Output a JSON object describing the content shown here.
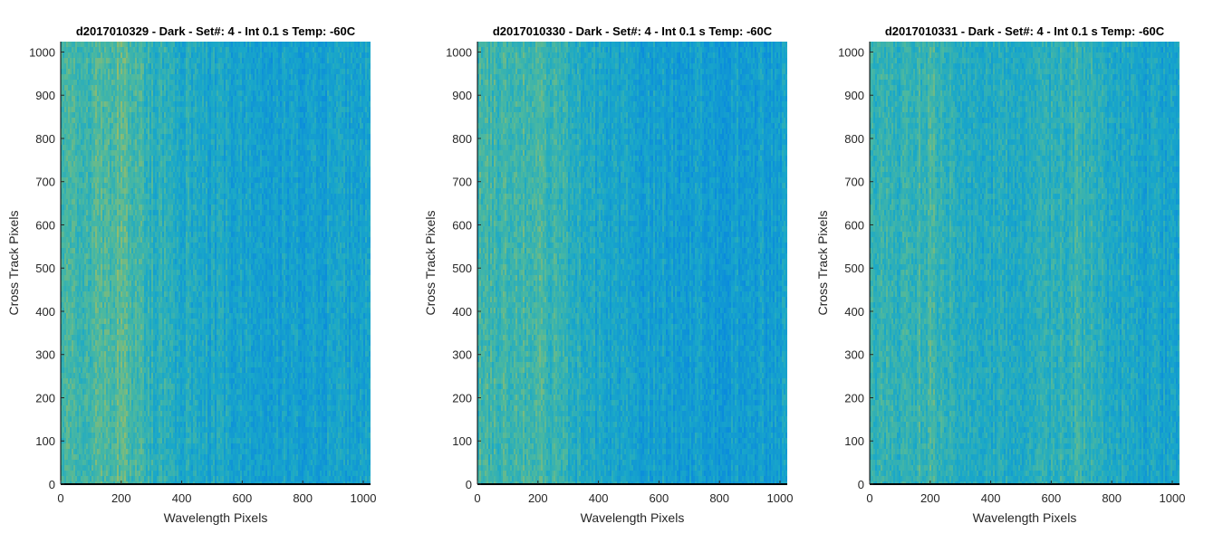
{
  "chart_data": [
    {
      "type": "heatmap",
      "title": "d2017010329 - Dark - Set#: 4 - Int 0.1 s Temp: -60C",
      "xlabel": "Wavelength Pixels",
      "ylabel": "Cross Track Pixels",
      "xlim": [
        0,
        1024
      ],
      "ylim": [
        0,
        1024
      ],
      "xticks": [
        0,
        200,
        400,
        600,
        800,
        1000
      ],
      "yticks": [
        0,
        100,
        200,
        300,
        400,
        500,
        600,
        700,
        800,
        900,
        1000
      ],
      "grid": false,
      "colormap": "parula",
      "warm_band_center_x": 200,
      "pattern_profile_x": [
        0,
        100,
        200,
        300,
        400,
        500,
        600,
        700,
        800,
        900,
        1000
      ],
      "pattern_profile_level": [
        0.55,
        0.6,
        0.68,
        0.48,
        0.38,
        0.33,
        0.28,
        0.26,
        0.26,
        0.27,
        0.3
      ]
    },
    {
      "type": "heatmap",
      "title": "d2017010330 - Dark - Set#: 4 - Int 0.1 s Temp: -60C",
      "xlabel": "Wavelength Pixels",
      "ylabel": "Cross Track Pixels",
      "xlim": [
        0,
        1024
      ],
      "ylim": [
        0,
        1024
      ],
      "xticks": [
        0,
        200,
        400,
        600,
        800,
        1000
      ],
      "yticks": [
        0,
        100,
        200,
        300,
        400,
        500,
        600,
        700,
        800,
        900,
        1000
      ],
      "grid": false,
      "colormap": "parula",
      "warm_band_center_x": 240,
      "pattern_profile_x": [
        0,
        100,
        200,
        300,
        400,
        500,
        600,
        700,
        800,
        900,
        1000
      ],
      "pattern_profile_level": [
        0.58,
        0.55,
        0.6,
        0.48,
        0.34,
        0.28,
        0.24,
        0.22,
        0.21,
        0.23,
        0.26
      ]
    },
    {
      "type": "heatmap",
      "title": "d2017010331 - Dark - Set#: 4 - Int 0.1 s Temp: -60C",
      "xlabel": "Wavelength Pixels",
      "ylabel": "Cross Track Pixels",
      "xlim": [
        0,
        1024
      ],
      "ylim": [
        0,
        1024
      ],
      "xticks": [
        0,
        200,
        400,
        600,
        800,
        1000
      ],
      "yticks": [
        0,
        100,
        200,
        300,
        400,
        500,
        600,
        700,
        800,
        900,
        1000
      ],
      "grid": false,
      "colormap": "parula",
      "warm_band_center_x": 180,
      "pattern_profile_x": [
        0,
        100,
        200,
        300,
        400,
        500,
        600,
        700,
        800,
        900,
        1000
      ],
      "pattern_profile_level": [
        0.52,
        0.5,
        0.58,
        0.44,
        0.4,
        0.42,
        0.47,
        0.52,
        0.38,
        0.32,
        0.3
      ]
    }
  ],
  "colors": {
    "parula_low": "#0A8BDC",
    "parula_mid": "#1AA8C8",
    "parula_mid_high": "#4BB8A0",
    "parula_high": "#B2BE56",
    "axis": "#262626",
    "background": "#ffffff"
  }
}
